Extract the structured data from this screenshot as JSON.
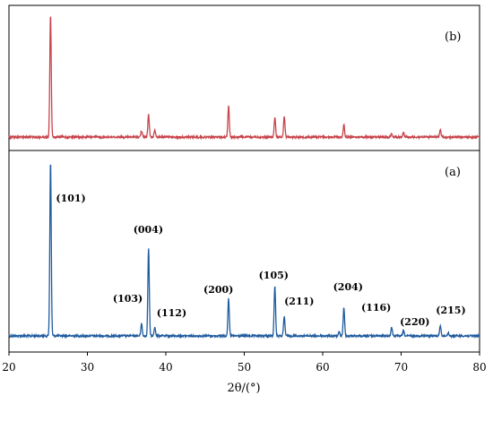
{
  "chart_data": {
    "type": "line",
    "xlabel": "2θ/(°)",
    "ylabel": "",
    "xlim": [
      20,
      80
    ],
    "x_ticks": [
      "20",
      "30",
      "40",
      "50",
      "60",
      "70",
      "80"
    ],
    "y_ticks_shown": false,
    "grid": false,
    "series": [
      {
        "panel_label": "(a)",
        "color": "#1f5b9e",
        "peaks": [
          {
            "x": 25.3,
            "y": 100
          },
          {
            "x": 36.9,
            "y": 7
          },
          {
            "x": 37.8,
            "y": 50
          },
          {
            "x": 38.6,
            "y": 5
          },
          {
            "x": 48.0,
            "y": 21
          },
          {
            "x": 53.9,
            "y": 29
          },
          {
            "x": 55.1,
            "y": 11
          },
          {
            "x": 62.1,
            "y": 2
          },
          {
            "x": 62.7,
            "y": 16
          },
          {
            "x": 68.8,
            "y": 5
          },
          {
            "x": 70.3,
            "y": 3
          },
          {
            "x": 75.0,
            "y": 6
          },
          {
            "x": 76.0,
            "y": 2
          }
        ],
        "annotations": [
          {
            "x": 25.3,
            "label": "(101)"
          },
          {
            "x": 36.9,
            "label": "(103)"
          },
          {
            "x": 37.8,
            "label": "(004)"
          },
          {
            "x": 38.6,
            "label": "(112)"
          },
          {
            "x": 48.0,
            "label": "(200)"
          },
          {
            "x": 53.9,
            "label": "(105)"
          },
          {
            "x": 55.1,
            "label": "(211)"
          },
          {
            "x": 62.7,
            "label": "(204)"
          },
          {
            "x": 68.8,
            "label": "(116)"
          },
          {
            "x": 70.3,
            "label": "(220)"
          },
          {
            "x": 75.0,
            "label": "(215)"
          }
        ]
      },
      {
        "panel_label": "(b)",
        "color": "#c8444c",
        "peaks": [
          {
            "x": 25.3,
            "y": 100
          },
          {
            "x": 36.9,
            "y": 5
          },
          {
            "x": 37.8,
            "y": 18
          },
          {
            "x": 38.6,
            "y": 6
          },
          {
            "x": 48.0,
            "y": 25
          },
          {
            "x": 53.9,
            "y": 16
          },
          {
            "x": 55.1,
            "y": 17
          },
          {
            "x": 62.7,
            "y": 10
          },
          {
            "x": 68.8,
            "y": 3
          },
          {
            "x": 70.3,
            "y": 4
          },
          {
            "x": 75.0,
            "y": 6
          }
        ]
      }
    ]
  }
}
